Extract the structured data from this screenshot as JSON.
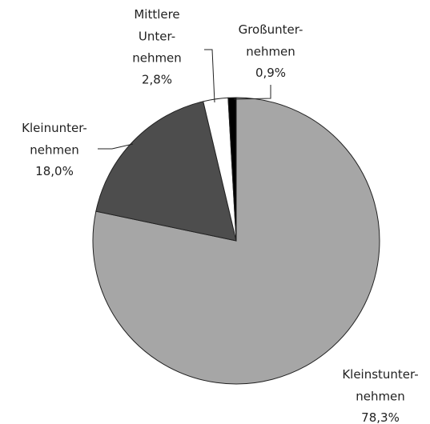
{
  "chart_data": {
    "type": "pie",
    "categories": [
      "Kleinstunter-\nnehmen",
      "Kleinunter-\nnehmen",
      "Mittlere\nUnter-\nnehmen",
      "Großunter-\nnehmen"
    ],
    "values": [
      78.3,
      18.0,
      2.8,
      0.9
    ],
    "value_labels": [
      "78,3%",
      "18,0%",
      "2,8%",
      "0,9%"
    ],
    "colors": [
      "#a6a6a6",
      "#4d4d4d",
      "#ffffff",
      "#000000"
    ]
  }
}
